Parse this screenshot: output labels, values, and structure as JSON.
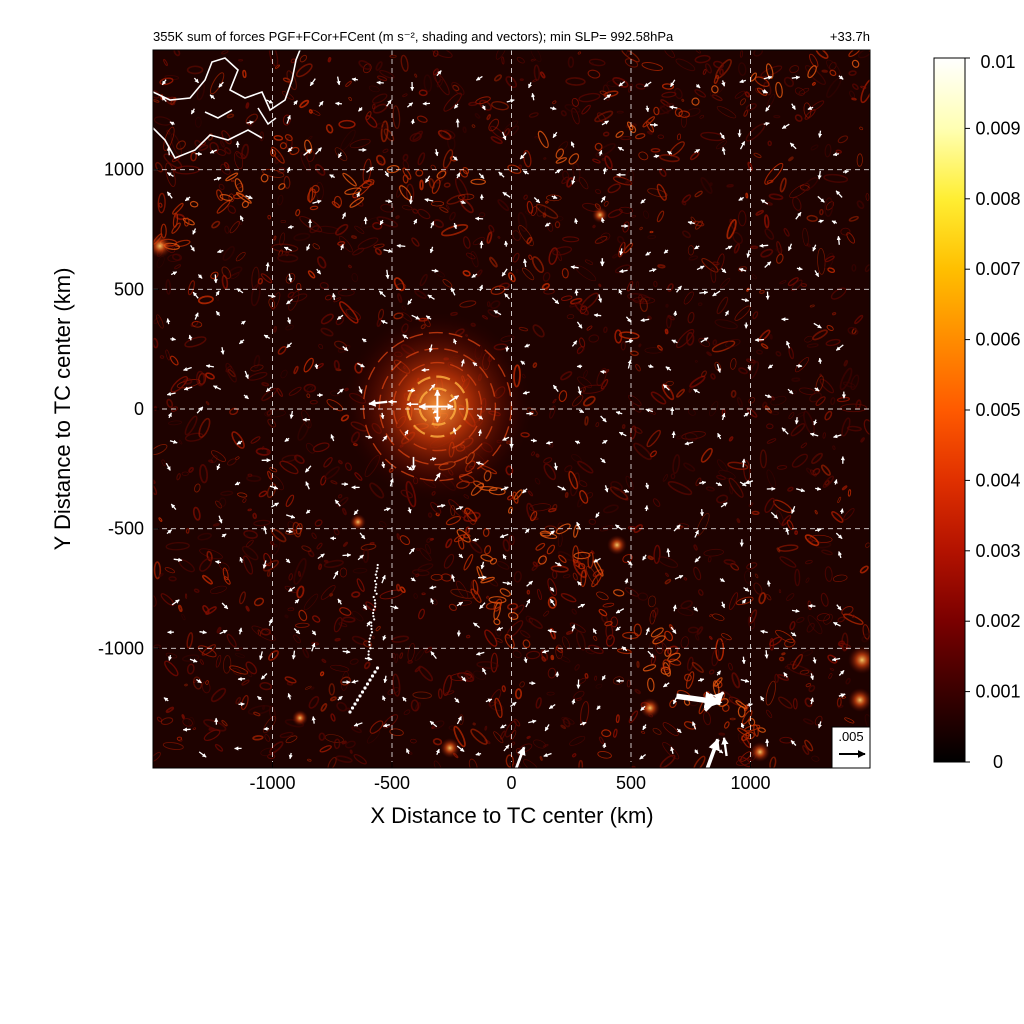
{
  "chart_data": {
    "type": "heatmap",
    "title": "355K sum of forces PGF+FCor+FCent (m s⁻², shading and vectors); min SLP= 992.58hPa",
    "time_label": "+33.7h",
    "xlabel": "X Distance to TC center (km)",
    "ylabel": "Y Distance to TC center (km)",
    "xlim": [
      -1500,
      1500
    ],
    "ylim": [
      -1500,
      1500
    ],
    "xticks": [
      -1000,
      -500,
      0,
      500,
      1000
    ],
    "yticks": [
      -1000,
      -500,
      0,
      500,
      1000
    ],
    "xtick_labels": [
      "-1000",
      "-500",
      "0",
      "500",
      "1000"
    ],
    "ytick_labels": [
      "-1000",
      "-500",
      "0",
      "500",
      "1000"
    ],
    "grid": true,
    "colorbar": {
      "min": 0,
      "max": 0.01,
      "ticks": [
        0,
        0.001,
        0.002,
        0.003,
        0.004,
        0.005,
        0.006,
        0.007,
        0.008,
        0.009,
        0.01
      ],
      "tick_labels": [
        "0",
        "0.001",
        "0.002",
        "0.003",
        "0.004",
        "0.005",
        "0.006",
        "0.007",
        "0.008",
        "0.009",
        "0.01"
      ],
      "colormap": [
        "#000000",
        "#3a0000",
        "#7a0000",
        "#b31200",
        "#e03000",
        "#ff5a00",
        "#ff8c00",
        "#ffbf00",
        "#ffee33",
        "#ffffb3",
        "#ffffff"
      ]
    },
    "reference_vector": {
      "label": ".005",
      "value": 0.005
    },
    "vectors": [
      {
        "x": -310,
        "y": 10,
        "u": -0.0035,
        "v": 0.0
      },
      {
        "x": -310,
        "y": 10,
        "u": 0.0,
        "v": 0.0032
      },
      {
        "x": -310,
        "y": 10,
        "u": 0.003,
        "v": 0.0
      },
      {
        "x": -310,
        "y": 10,
        "u": 0.0,
        "v": -0.003
      },
      {
        "x": -520,
        "y": 30,
        "u": -0.0035,
        "v": -0.0004
      },
      {
        "x": -390,
        "y": 20,
        "u": -0.0022,
        "v": 0.0
      },
      {
        "x": -260,
        "y": 30,
        "u": 0.0018,
        "v": 0.0012
      },
      {
        "x": -410,
        "y": -200,
        "u": 0.0,
        "v": -0.0025
      },
      {
        "x": -320,
        "y": -300,
        "u": 0.001,
        "v": 0.0015
      },
      {
        "x": 0,
        "y": -120,
        "u": 0.0,
        "v": -0.002
      },
      {
        "x": 690,
        "y": -1200,
        "u": 0.0085,
        "v": -0.0012
      },
      {
        "x": 810,
        "y": -1260,
        "u": 0.0035,
        "v": 0.0035
      },
      {
        "x": 820,
        "y": -1500,
        "u": 0.002,
        "v": 0.0055
      },
      {
        "x": 900,
        "y": -1450,
        "u": -0.0005,
        "v": 0.0035
      },
      {
        "x": 20,
        "y": -1500,
        "u": 0.0015,
        "v": 0.004
      },
      {
        "x": -870,
        "y": 1060,
        "u": 0.0015,
        "v": 0.0012
      },
      {
        "x": 1010,
        "y": -300,
        "u": -0.0015,
        "v": -0.0005
      },
      {
        "x": -480,
        "y": 30,
        "u": -0.0016,
        "v": 0.0
      },
      {
        "x": 1370,
        "y": -1200,
        "u": 0.0012,
        "v": 0.0004
      },
      {
        "x": 380,
        "y": 630,
        "u": 0.0,
        "v": -0.0015
      },
      {
        "x": 1050,
        "y": 1330,
        "u": 0.001,
        "v": -0.0004
      }
    ]
  }
}
